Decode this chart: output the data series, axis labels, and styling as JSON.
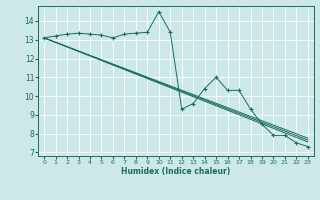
{
  "xlabel": "Humidex (Indice chaleur)",
  "xlim": [
    -0.5,
    23.5
  ],
  "ylim": [
    6.8,
    14.8
  ],
  "yticks": [
    7,
    8,
    9,
    10,
    11,
    12,
    13,
    14
  ],
  "xticks": [
    0,
    1,
    2,
    3,
    4,
    5,
    6,
    7,
    8,
    9,
    10,
    11,
    12,
    13,
    14,
    15,
    16,
    17,
    18,
    19,
    20,
    21,
    22,
    23
  ],
  "bg_color": "#cce8e8",
  "grid_color": "#ffffff",
  "line_color": "#1a6b5e",
  "series1_x": [
    0,
    1,
    2,
    3,
    4,
    5,
    6,
    7,
    8,
    9,
    10,
    11,
    12,
    13,
    14,
    15,
    16,
    17,
    18,
    19,
    20,
    21,
    22,
    23
  ],
  "series1_y": [
    13.1,
    13.2,
    13.3,
    13.35,
    13.3,
    13.25,
    13.1,
    13.3,
    13.35,
    13.4,
    14.5,
    13.4,
    9.3,
    9.6,
    10.4,
    11.0,
    10.3,
    10.3,
    9.3,
    8.5,
    7.9,
    7.9,
    7.5,
    7.3
  ],
  "series2_x": [
    0,
    23
  ],
  "series2_y": [
    13.1,
    7.55
  ],
  "series3_x": [
    0,
    23
  ],
  "series3_y": [
    13.1,
    7.65
  ],
  "series4_x": [
    0,
    23
  ],
  "series4_y": [
    13.1,
    7.75
  ]
}
